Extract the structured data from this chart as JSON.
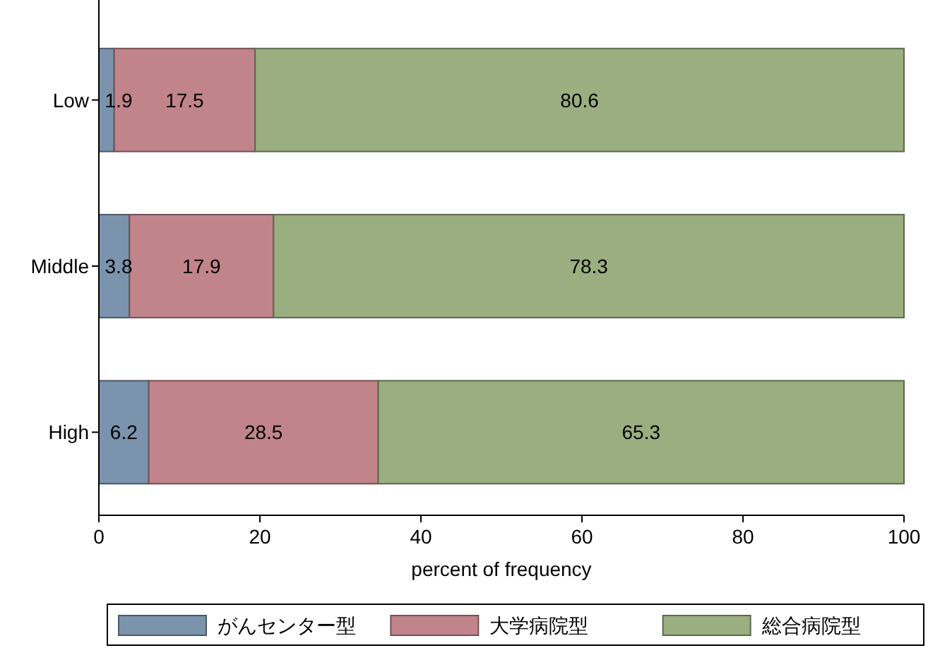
{
  "chart_data": {
    "type": "bar",
    "orientation": "horizontal",
    "stacked": true,
    "categories": [
      "Low",
      "Middle",
      "High"
    ],
    "series": [
      {
        "name": "がんセンター型",
        "color": "#7b93ad",
        "values": [
          1.9,
          3.8,
          6.2
        ]
      },
      {
        "name": "大学病院型",
        "color": "#c1848a",
        "values": [
          17.5,
          17.9,
          28.5
        ]
      },
      {
        "name": "総合病院型",
        "color": "#9aae80",
        "values": [
          80.6,
          78.3,
          65.3
        ]
      }
    ],
    "xlim": [
      0,
      100
    ],
    "xticks": [
      0,
      20,
      40,
      60,
      80,
      100
    ],
    "xlabel": "percent of frequency",
    "data_labels": true,
    "legend": "bottom",
    "grid": false
  }
}
